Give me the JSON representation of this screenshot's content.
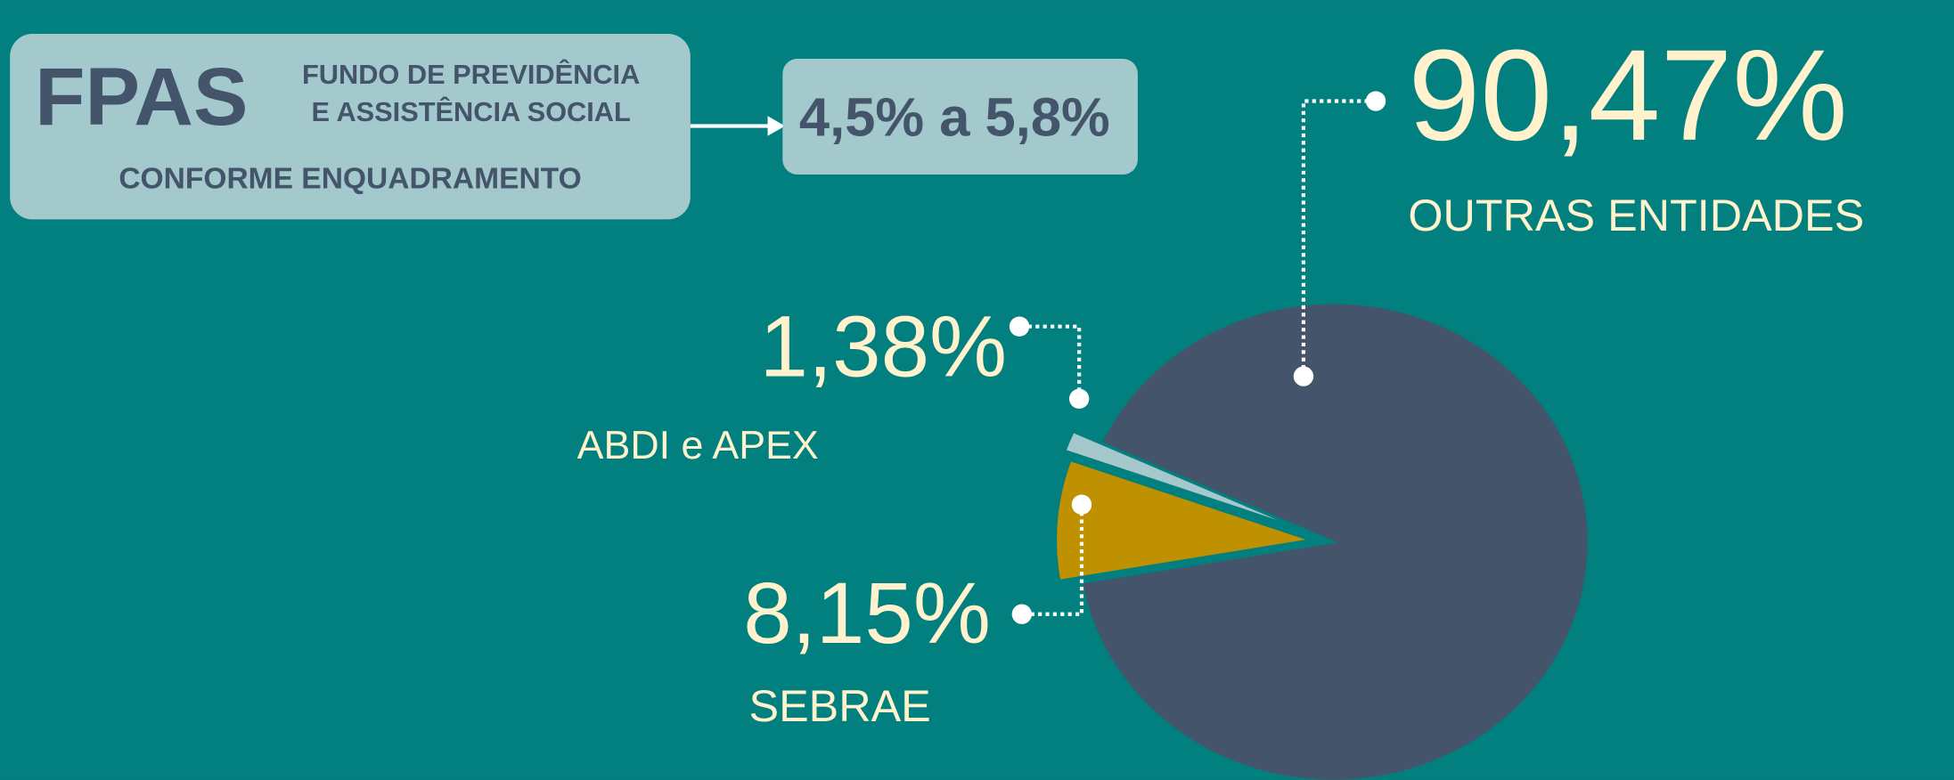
{
  "header": {
    "acronym": "FPAS",
    "name_line1": "FUNDO DE PREVIDÊNCIA",
    "name_line2": "E ASSISTÊNCIA SOCIAL",
    "subtitle": "CONFORME ENQUADRAMENTO",
    "rate": "4,5% a 5,8%"
  },
  "chart_data": {
    "type": "pie",
    "categories": [
      "OUTRAS ENTIDADES",
      "SEBRAE",
      "ABDI e APEX"
    ],
    "values": [
      90.47,
      8.15,
      1.38
    ],
    "value_labels": [
      "90,47%",
      "8,15%",
      "1,38%"
    ],
    "colors": [
      "#44546a",
      "#bf9000",
      "#a5c8cc"
    ]
  }
}
